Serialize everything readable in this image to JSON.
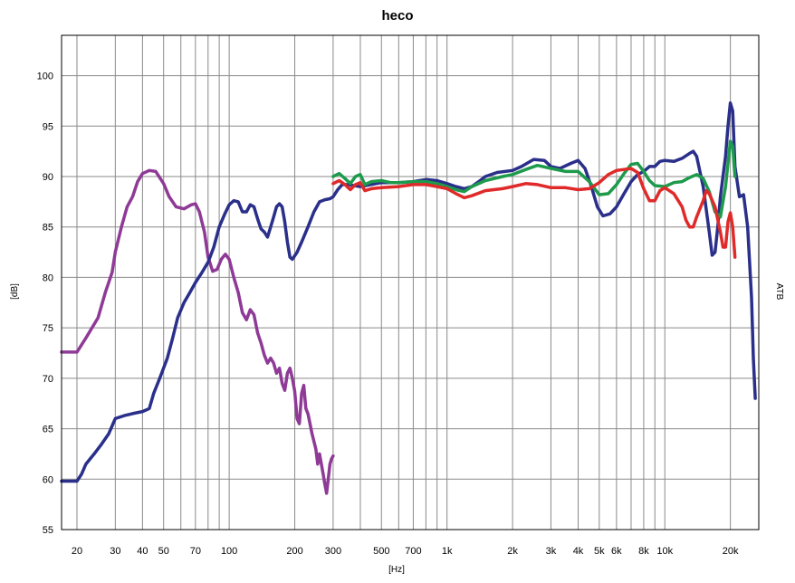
{
  "chart_data": {
    "type": "line",
    "title": "heco",
    "xlabel": "[Hz]",
    "ylabel": "[dB]",
    "right_label": "ATB",
    "x_scale": "log",
    "xlim": [
      17,
      27000
    ],
    "ylim": [
      55,
      104
    ],
    "grid": true,
    "y_ticks": [
      55,
      60,
      65,
      70,
      75,
      80,
      85,
      90,
      95,
      100
    ],
    "x_ticks": [
      {
        "value": 20,
        "label": "20"
      },
      {
        "value": 30,
        "label": "30"
      },
      {
        "value": 40,
        "label": "40"
      },
      {
        "value": 50,
        "label": "50"
      },
      {
        "value": 70,
        "label": "70"
      },
      {
        "value": 100,
        "label": "100"
      },
      {
        "value": 200,
        "label": "200"
      },
      {
        "value": 300,
        "label": "300"
      },
      {
        "value": 500,
        "label": "500"
      },
      {
        "value": 700,
        "label": "700"
      },
      {
        "value": 1000,
        "label": "1k"
      },
      {
        "value": 2000,
        "label": "2k"
      },
      {
        "value": 3000,
        "label": "3k"
      },
      {
        "value": 4000,
        "label": "4k"
      },
      {
        "value": 5000,
        "label": "5k"
      },
      {
        "value": 6000,
        "label": "6k"
      },
      {
        "value": 8000,
        "label": "8k"
      },
      {
        "value": 10000,
        "label": "10k"
      },
      {
        "value": 20000,
        "label": "20k"
      }
    ],
    "series": [
      {
        "color": "#8e3a96",
        "points": [
          [
            17,
            72.6
          ],
          [
            20,
            72.6
          ],
          [
            22,
            74
          ],
          [
            25,
            76
          ],
          [
            27,
            78.5
          ],
          [
            29,
            80.5
          ],
          [
            30,
            82.5
          ],
          [
            32,
            85
          ],
          [
            34,
            87
          ],
          [
            36,
            88
          ],
          [
            38,
            89.5
          ],
          [
            40,
            90.3
          ],
          [
            43,
            90.6
          ],
          [
            46,
            90.5
          ],
          [
            50,
            89.3
          ],
          [
            53,
            88
          ],
          [
            57,
            87
          ],
          [
            62,
            86.8
          ],
          [
            67,
            87.2
          ],
          [
            70,
            87.3
          ],
          [
            73,
            86.5
          ],
          [
            77,
            84.5
          ],
          [
            80,
            82
          ],
          [
            84,
            80.6
          ],
          [
            88,
            80.8
          ],
          [
            92,
            81.8
          ],
          [
            96,
            82.3
          ],
          [
            100,
            81.8
          ],
          [
            105,
            80
          ],
          [
            110,
            78.5
          ],
          [
            115,
            76.5
          ],
          [
            120,
            75.8
          ],
          [
            125,
            76.8
          ],
          [
            130,
            76.3
          ],
          [
            135,
            74.5
          ],
          [
            140,
            73.5
          ],
          [
            145,
            72.3
          ],
          [
            150,
            71.5
          ],
          [
            155,
            72
          ],
          [
            160,
            71.5
          ],
          [
            165,
            70.5
          ],
          [
            170,
            71
          ],
          [
            175,
            69.5
          ],
          [
            180,
            68.8
          ],
          [
            185,
            70.5
          ],
          [
            190,
            71
          ],
          [
            195,
            70
          ],
          [
            200,
            68.7
          ],
          [
            205,
            66
          ],
          [
            210,
            65.5
          ],
          [
            215,
            68.5
          ],
          [
            220,
            69.3
          ],
          [
            225,
            67
          ],
          [
            230,
            66.5
          ],
          [
            240,
            64.5
          ],
          [
            250,
            63
          ],
          [
            255,
            61.5
          ],
          [
            260,
            62.5
          ],
          [
            265,
            61.5
          ],
          [
            270,
            60.5
          ],
          [
            275,
            59.5
          ],
          [
            280,
            58.6
          ],
          [
            285,
            60
          ],
          [
            290,
            61.5
          ],
          [
            295,
            62
          ],
          [
            300,
            62.3
          ]
        ]
      },
      {
        "color": "#2a2f8a",
        "points": [
          [
            17,
            59.8
          ],
          [
            20,
            59.8
          ],
          [
            21,
            60.5
          ],
          [
            22,
            61.5
          ],
          [
            24,
            62.5
          ],
          [
            26,
            63.5
          ],
          [
            28,
            64.5
          ],
          [
            30,
            66
          ],
          [
            33,
            66.3
          ],
          [
            36,
            66.5
          ],
          [
            40,
            66.7
          ],
          [
            43,
            67
          ],
          [
            45,
            68.5
          ],
          [
            48,
            70
          ],
          [
            52,
            72
          ],
          [
            55,
            74
          ],
          [
            58,
            76
          ],
          [
            62,
            77.5
          ],
          [
            66,
            78.5
          ],
          [
            70,
            79.5
          ],
          [
            75,
            80.5
          ],
          [
            80,
            81.5
          ],
          [
            85,
            83
          ],
          [
            90,
            85
          ],
          [
            95,
            86.2
          ],
          [
            100,
            87.2
          ],
          [
            105,
            87.6
          ],
          [
            110,
            87.5
          ],
          [
            115,
            86.5
          ],
          [
            120,
            86.5
          ],
          [
            125,
            87.2
          ],
          [
            130,
            87
          ],
          [
            135,
            85.8
          ],
          [
            140,
            84.8
          ],
          [
            145,
            84.5
          ],
          [
            150,
            84
          ],
          [
            155,
            85
          ],
          [
            160,
            86
          ],
          [
            165,
            87
          ],
          [
            170,
            87.3
          ],
          [
            175,
            87
          ],
          [
            180,
            85.5
          ],
          [
            185,
            83.5
          ],
          [
            190,
            82
          ],
          [
            195,
            81.8
          ],
          [
            205,
            82.5
          ],
          [
            215,
            83.5
          ],
          [
            230,
            85
          ],
          [
            245,
            86.5
          ],
          [
            260,
            87.5
          ],
          [
            275,
            87.7
          ],
          [
            290,
            87.8
          ],
          [
            300,
            88
          ],
          [
            315,
            88.7
          ],
          [
            330,
            89.2
          ],
          [
            350,
            89.2
          ],
          [
            400,
            89
          ],
          [
            500,
            89.4
          ],
          [
            600,
            89.4
          ],
          [
            700,
            89.5
          ],
          [
            800,
            89.7
          ],
          [
            900,
            89.6
          ],
          [
            1000,
            89.3
          ],
          [
            1100,
            89
          ],
          [
            1200,
            88.8
          ],
          [
            1300,
            89
          ],
          [
            1400,
            89.5
          ],
          [
            1500,
            90
          ],
          [
            1700,
            90.4
          ],
          [
            2000,
            90.6
          ],
          [
            2200,
            91
          ],
          [
            2500,
            91.7
          ],
          [
            2800,
            91.6
          ],
          [
            3000,
            91
          ],
          [
            3300,
            90.8
          ],
          [
            3700,
            91.3
          ],
          [
            4000,
            91.6
          ],
          [
            4300,
            90.8
          ],
          [
            4600,
            89
          ],
          [
            4900,
            87
          ],
          [
            5200,
            86.1
          ],
          [
            5600,
            86.3
          ],
          [
            6000,
            87
          ],
          [
            6500,
            88.3
          ],
          [
            7000,
            89.5
          ],
          [
            7500,
            90.2
          ],
          [
            8000,
            90.5
          ],
          [
            8500,
            91
          ],
          [
            9000,
            91
          ],
          [
            9500,
            91.5
          ],
          [
            10000,
            91.6
          ],
          [
            11000,
            91.5
          ],
          [
            12000,
            91.8
          ],
          [
            13000,
            92.3
          ],
          [
            13500,
            92.5
          ],
          [
            14000,
            92
          ],
          [
            15000,
            89
          ],
          [
            16000,
            84.5
          ],
          [
            16500,
            82.2
          ],
          [
            17000,
            82.5
          ],
          [
            17500,
            85
          ],
          [
            18000,
            88
          ],
          [
            19000,
            92
          ],
          [
            19500,
            95
          ],
          [
            20000,
            97.3
          ],
          [
            20500,
            96.5
          ],
          [
            21000,
            91
          ],
          [
            22000,
            88
          ],
          [
            23000,
            88.2
          ],
          [
            24000,
            85
          ],
          [
            25000,
            78
          ],
          [
            25500,
            72
          ],
          [
            26000,
            68
          ]
        ]
      },
      {
        "color": "#1e9a4c",
        "points": [
          [
            300,
            90
          ],
          [
            320,
            90.3
          ],
          [
            340,
            89.8
          ],
          [
            360,
            89.3
          ],
          [
            380,
            90
          ],
          [
            400,
            90.2
          ],
          [
            420,
            89.2
          ],
          [
            450,
            89.5
          ],
          [
            500,
            89.6
          ],
          [
            550,
            89.4
          ],
          [
            600,
            89.4
          ],
          [
            700,
            89.5
          ],
          [
            800,
            89.5
          ],
          [
            900,
            89.3
          ],
          [
            1000,
            89
          ],
          [
            1100,
            88.7
          ],
          [
            1200,
            88.5
          ],
          [
            1300,
            89
          ],
          [
            1500,
            89.6
          ],
          [
            1800,
            90
          ],
          [
            2000,
            90.2
          ],
          [
            2300,
            90.7
          ],
          [
            2600,
            91.1
          ],
          [
            3000,
            90.8
          ],
          [
            3500,
            90.5
          ],
          [
            4000,
            90.5
          ],
          [
            4500,
            89.5
          ],
          [
            5000,
            88.2
          ],
          [
            5500,
            88.3
          ],
          [
            6000,
            89.2
          ],
          [
            6500,
            90.3
          ],
          [
            7000,
            91.2
          ],
          [
            7500,
            91.3
          ],
          [
            8000,
            90.5
          ],
          [
            8500,
            89.6
          ],
          [
            9000,
            89.1
          ],
          [
            10000,
            89
          ],
          [
            11000,
            89.4
          ],
          [
            12000,
            89.5
          ],
          [
            13000,
            89.9
          ],
          [
            14000,
            90.2
          ],
          [
            15000,
            89.8
          ],
          [
            16000,
            88.5
          ],
          [
            17000,
            86.5
          ],
          [
            18000,
            86
          ],
          [
            19000,
            89
          ],
          [
            20000,
            93.5
          ],
          [
            20500,
            93
          ],
          [
            21000,
            90
          ]
        ]
      },
      {
        "color": "#e02a2a",
        "points": [
          [
            300,
            89.3
          ],
          [
            320,
            89.6
          ],
          [
            340,
            89.2
          ],
          [
            360,
            88.7
          ],
          [
            380,
            89.2
          ],
          [
            400,
            89.4
          ],
          [
            420,
            88.6
          ],
          [
            450,
            88.8
          ],
          [
            500,
            88.9
          ],
          [
            600,
            89
          ],
          [
            700,
            89.2
          ],
          [
            800,
            89.2
          ],
          [
            900,
            89
          ],
          [
            1000,
            88.8
          ],
          [
            1100,
            88.3
          ],
          [
            1200,
            87.9
          ],
          [
            1300,
            88.1
          ],
          [
            1500,
            88.6
          ],
          [
            1800,
            88.8
          ],
          [
            2000,
            89
          ],
          [
            2300,
            89.3
          ],
          [
            2600,
            89.2
          ],
          [
            3000,
            88.9
          ],
          [
            3500,
            88.9
          ],
          [
            4000,
            88.7
          ],
          [
            4500,
            88.8
          ],
          [
            5000,
            89.4
          ],
          [
            5500,
            90.2
          ],
          [
            6000,
            90.6
          ],
          [
            6500,
            90.7
          ],
          [
            7000,
            90.8
          ],
          [
            7500,
            90.4
          ],
          [
            8000,
            88.8
          ],
          [
            8500,
            87.6
          ],
          [
            9000,
            87.6
          ],
          [
            9500,
            88.6
          ],
          [
            10000,
            88.9
          ],
          [
            11000,
            88.3
          ],
          [
            12000,
            87
          ],
          [
            12500,
            85.7
          ],
          [
            13000,
            85
          ],
          [
            13500,
            85
          ],
          [
            14000,
            86
          ],
          [
            15000,
            87.6
          ],
          [
            15500,
            88.6
          ],
          [
            16000,
            88.3
          ],
          [
            17000,
            87
          ],
          [
            18000,
            84.5
          ],
          [
            18500,
            83
          ],
          [
            19000,
            83
          ],
          [
            19500,
            85.5
          ],
          [
            20000,
            86.4
          ],
          [
            20500,
            85
          ],
          [
            21000,
            82
          ]
        ]
      }
    ]
  }
}
